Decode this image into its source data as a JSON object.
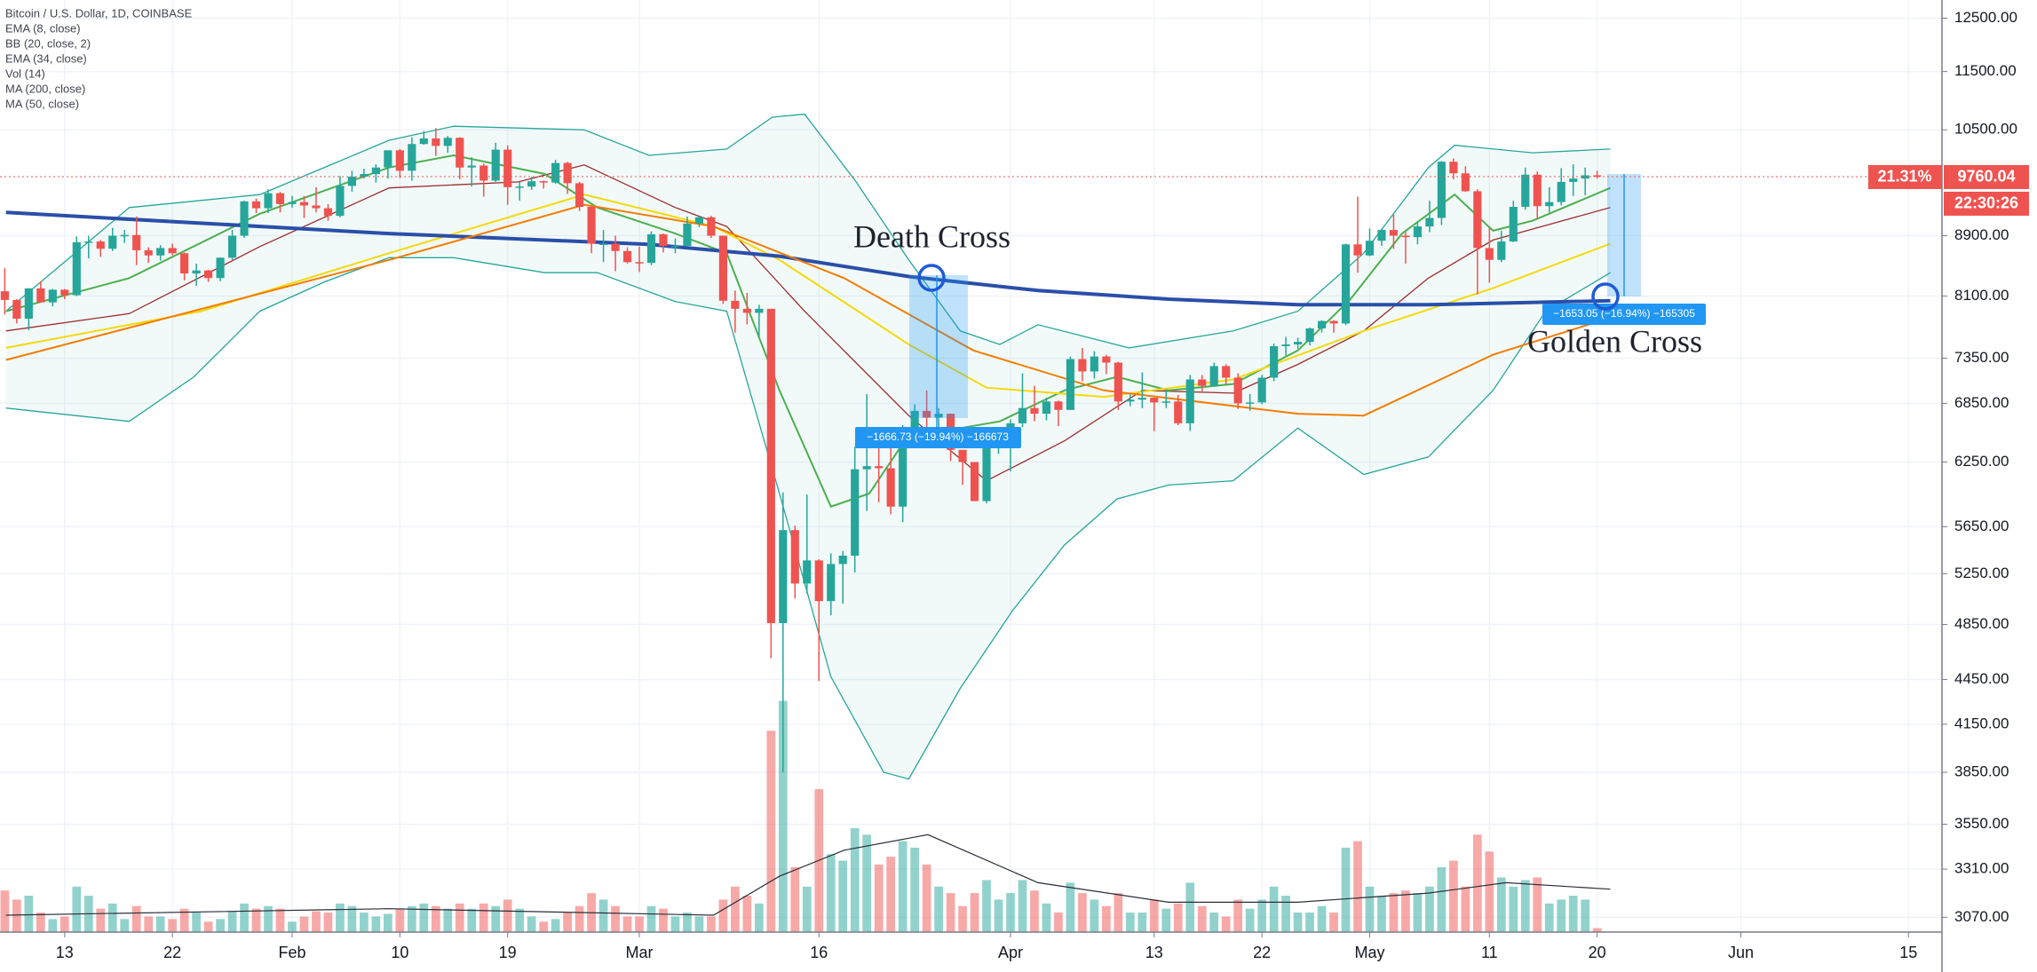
{
  "chart_data": {
    "type": "candlestick",
    "title": "Bitcoin / U.S. Dollar, 1D, COINBASE",
    "log_scale": true,
    "grid": true,
    "up_color": "#26a69a",
    "down_color": "#ef5350",
    "xlim": [
      7.6,
      169.8
    ],
    "xticks": [
      13,
      22,
      {
        "value": 32,
        "label": "Feb"
      },
      {
        "value": 41,
        "label": "10"
      },
      {
        "value": 50,
        "label": "19"
      },
      {
        "value": 61,
        "label": "Mar"
      },
      {
        "value": 76,
        "label": "16"
      },
      {
        "value": 92,
        "label": "Apr"
      },
      {
        "value": 104,
        "label": "13"
      },
      {
        "value": 113,
        "label": "22"
      },
      {
        "value": 122,
        "label": "May"
      },
      {
        "value": 132,
        "label": "11"
      },
      {
        "value": 141,
        "label": "20"
      },
      {
        "value": 153,
        "label": "Jun"
      },
      {
        "value": 167,
        "label": "15"
      }
    ],
    "ylim": [
      3000,
      12860
    ],
    "yticks": [
      {
        "value": 12500,
        "label": "12500.00"
      },
      {
        "value": 11500,
        "label": "11500.00"
      },
      {
        "value": 10500,
        "label": "10500.00"
      },
      {
        "value": 8900,
        "label": "8900.00"
      },
      {
        "value": 8100,
        "label": "8100.00"
      },
      {
        "value": 7350,
        "label": "7350.00"
      },
      {
        "value": 6850,
        "label": "6850.00"
      },
      {
        "value": 6250,
        "label": "6250.00"
      },
      {
        "value": 5650,
        "label": "5650.00"
      },
      {
        "value": 5250,
        "label": "5250.00"
      },
      {
        "value": 4850,
        "label": "4850.00"
      },
      {
        "value": 4450,
        "label": "4450.00"
      },
      {
        "value": 4150,
        "label": "4150.00"
      },
      {
        "value": 3850,
        "label": "3850.00"
      },
      {
        "value": 3550,
        "label": "3550.00"
      },
      {
        "value": 3310,
        "label": "3310.00"
      },
      {
        "value": 3070,
        "label": "3070.00"
      }
    ],
    "x": [
      8,
      9,
      10,
      11,
      12,
      13,
      14,
      15,
      16,
      17,
      18,
      19,
      20,
      21,
      22,
      23,
      24,
      25,
      26,
      27,
      28,
      29,
      30,
      31,
      32,
      33,
      34,
      35,
      36,
      37,
      38,
      39,
      40,
      41,
      42,
      43,
      44,
      45,
      46,
      47,
      48,
      49,
      50,
      51,
      52,
      53,
      54,
      55,
      56,
      57,
      58,
      59,
      60,
      61,
      62,
      63,
      64,
      65,
      66,
      67,
      68,
      69,
      70,
      71,
      72,
      73,
      74,
      75,
      76,
      77,
      78,
      79,
      80,
      81,
      82,
      83,
      84,
      85,
      86,
      87,
      88,
      89,
      90,
      91,
      92,
      93,
      94,
      95,
      96,
      97,
      98,
      99,
      100,
      101,
      102,
      103,
      104,
      105,
      106,
      107,
      108,
      109,
      110,
      111,
      112,
      113,
      114,
      115,
      116,
      117,
      118,
      119,
      120,
      121,
      122,
      123,
      124,
      125,
      126,
      127,
      128,
      129,
      130,
      131,
      132,
      133,
      134,
      135,
      136,
      137,
      138,
      139,
      140,
      141
    ],
    "open": [
      8160,
      8050,
      7818,
      8197,
      8020,
      8180,
      8110,
      8810,
      8820,
      8720,
      8900,
      8910,
      8700,
      8630,
      8730,
      8660,
      8390,
      8430,
      8330,
      8600,
      8900,
      9390,
      9290,
      9510,
      9350,
      9380,
      9330,
      9290,
      9180,
      9620,
      9760,
      9800,
      9900,
      10170,
      9850,
      10270,
      10360,
      10240,
      10370,
      9900,
      9930,
      9700,
      10180,
      9600,
      9610,
      9690,
      9670,
      9970,
      9660,
      9310,
      8790,
      8790,
      8690,
      8540,
      8530,
      8920,
      8760,
      8760,
      9070,
      9160,
      8900,
      8040,
      7940,
      7890,
      7940,
      4860,
      5620,
      5170,
      5360,
      5030,
      5330,
      5400,
      6180,
      6210,
      6190,
      5830,
      6490,
      6770,
      6700,
      6740,
      6370,
      6250,
      5880,
      6410,
      6430,
      6640,
      6800,
      6740,
      6870,
      6780,
      7340,
      7200,
      7370,
      7300,
      6870,
      6890,
      6910,
      6860,
      6870,
      6640,
      7110,
      7040,
      7260,
      7130,
      6850,
      6860,
      7130,
      7490,
      7510,
      7540,
      7700,
      7790,
      7760,
      8780,
      8630,
      8830,
      8980,
      8900,
      8880,
      9030,
      9150,
      9990,
      9810,
      9540,
      8730,
      8570,
      8820,
      9310,
      9790,
      9320,
      9380,
      9680,
      9730,
      9780
    ],
    "high": [
      8460,
      8060,
      8200,
      8290,
      8190,
      8190,
      8890,
      8900,
      8840,
      9010,
      8980,
      9170,
      8740,
      8770,
      8790,
      8670,
      8520,
      8440,
      8600,
      8980,
      9400,
      9430,
      9570,
      9530,
      9470,
      9470,
      9600,
      9350,
      9770,
      9850,
      9880,
      9950,
      10170,
      10190,
      10380,
      10480,
      10530,
      10400,
      10380,
      10060,
      9960,
      10290,
      10250,
      9680,
      9760,
      9700,
      10020,
      9990,
      9680,
      9330,
      8980,
      8900,
      8740,
      8750,
      8960,
      8930,
      8860,
      9170,
      9170,
      9180,
      8900,
      8170,
      8140,
      7990,
      7940,
      5960,
      5660,
      5940,
      5370,
      5420,
      5440,
      6400,
      6950,
      6460,
      6400,
      6620,
      6840,
      6990,
      6800,
      6740,
      6370,
      6250,
      6600,
      6530,
      6680,
      7180,
      7040,
      6910,
      6880,
      7370,
      7470,
      7430,
      7390,
      7310,
      6950,
      7190,
      6910,
      6990,
      6940,
      7160,
      7160,
      7300,
      7280,
      7180,
      6950,
      7160,
      7520,
      7600,
      7590,
      7710,
      7800,
      7800,
      8790,
      9460,
      9000,
      9000,
      9200,
      8950,
      9100,
      9400,
      10000,
      10040,
      9920,
      9570,
      9020,
      8970,
      9400,
      9900,
      9840,
      9600,
      9890,
      9950,
      9900,
      9850
    ],
    "low": [
      7870,
      7760,
      7680,
      8020,
      7970,
      8060,
      8100,
      8590,
      8610,
      8690,
      8800,
      8500,
      8530,
      8560,
      8630,
      8300,
      8230,
      8280,
      8290,
      8570,
      8870,
      9220,
      9220,
      9230,
      9300,
      9150,
      9230,
      9110,
      9160,
      9530,
      9730,
      9670,
      9730,
      9740,
      9700,
      10260,
      10080,
      10130,
      9720,
      9610,
      9460,
      9680,
      9340,
      9400,
      9560,
      9580,
      9650,
      9500,
      9250,
      8660,
      8540,
      8420,
      8520,
      8410,
      8500,
      8670,
      8660,
      8750,
      9020,
      8870,
      8000,
      7650,
      7750,
      7600,
      4600,
      3850,
      5050,
      5090,
      4440,
      4920,
      5010,
      5260,
      5790,
      5870,
      5760,
      5690,
      6400,
      6530,
      6560,
      6260,
      6030,
      5880,
      5860,
      6330,
      6160,
      6600,
      6660,
      6670,
      6610,
      6780,
      7090,
      7120,
      7170,
      6780,
      6820,
      6800,
      6560,
      6800,
      6620,
      6560,
      6980,
      7030,
      7060,
      6790,
      6770,
      6840,
      7090,
      7380,
      7460,
      7500,
      7650,
      7650,
      7740,
      8400,
      8620,
      8760,
      8720,
      8520,
      8780,
      8950,
      9050,
      9720,
      9530,
      8120,
      8270,
      8540,
      8810,
      9270,
      9130,
      9230,
      9330,
      9470,
      9480,
      9730
    ],
    "close": [
      8050,
      7818,
      8197,
      8020,
      8180,
      8110,
      8810,
      8820,
      8720,
      8900,
      8910,
      8700,
      8630,
      8730,
      8660,
      8390,
      8430,
      8330,
      8600,
      8900,
      9390,
      9290,
      9510,
      9350,
      9380,
      9330,
      9290,
      9180,
      9620,
      9760,
      9800,
      9900,
      10170,
      9850,
      10270,
      10360,
      10240,
      10370,
      9900,
      9930,
      9700,
      10180,
      9600,
      9610,
      9690,
      9670,
      9970,
      9660,
      9310,
      8790,
      8790,
      8690,
      8540,
      8530,
      8920,
      8760,
      8760,
      9070,
      9160,
      8900,
      8040,
      7940,
      7890,
      7940,
      4860,
      5620,
      5170,
      5360,
      5030,
      5330,
      5400,
      6180,
      6210,
      6190,
      5830,
      6490,
      6770,
      6700,
      6740,
      6370,
      6250,
      5880,
      6410,
      6430,
      6640,
      6800,
      6740,
      6870,
      6780,
      7340,
      7200,
      7370,
      7300,
      6870,
      6890,
      6910,
      6860,
      6870,
      6640,
      7110,
      7040,
      7260,
      7130,
      6850,
      6860,
      7130,
      7490,
      7510,
      7540,
      7700,
      7790,
      7760,
      8780,
      8630,
      8830,
      8980,
      8900,
      8880,
      9030,
      9150,
      9990,
      9810,
      9540,
      8730,
      8570,
      8820,
      9310,
      9790,
      9320,
      9380,
      9680,
      9730,
      9780,
      9760.04
    ],
    "indicators": [
      {
        "name": "EMA (8, close)",
        "type": "line",
        "color": "#4caf50",
        "x": [
          8.1,
          18.4,
          29.3,
          40.1,
          45.5,
          53.1,
          57.5,
          64.0,
          68.3,
          72.7,
          77.0,
          80.2,
          83.5,
          87.8,
          91.1,
          96.5,
          100.9,
          105.2,
          110.6,
          116.0,
          120.4,
          124.7,
          129.1,
          132.3,
          135.6,
          142.1
        ],
        "values": [
          7910,
          8330,
          9210,
          9900,
          10090,
          9800,
          9300,
          8930,
          8660,
          6990,
          5830,
          5950,
          6520,
          6590,
          6660,
          6990,
          7140,
          6990,
          7060,
          7440,
          8060,
          8930,
          9490,
          8970,
          9110,
          9590
        ]
      },
      {
        "name": "BB (20, close, 2)",
        "type": "band",
        "color": "#26a69a",
        "basis_color": "#9b2c2c",
        "upper": {
          "x": [
            8.1,
            18.4,
            29.3,
            40.1,
            45.5,
            56.4,
            61.8,
            68.3,
            72.1,
            74.8,
            79.1,
            83.5,
            87.8,
            91.1,
            94.3,
            101.9,
            110.6,
            116.0,
            121.5,
            126.9,
            129.1,
            135.6,
            142.1
          ],
          "values": [
            7910,
            9300,
            9490,
            10330,
            10560,
            10500,
            10090,
            10190,
            10710,
            10760,
            9680,
            8570,
            7670,
            7510,
            7745,
            7470,
            7670,
            7910,
            8660,
            9900,
            10250,
            10130,
            10190
          ]
        },
        "lower": {
          "x": [
            8.1,
            18.4,
            23.8,
            29.3,
            34.7,
            40.1,
            45.5,
            53.1,
            57.5,
            64.0,
            68.3,
            72.7,
            77.0,
            81.4,
            83.5,
            87.8,
            92.2,
            96.5,
            100.9,
            105.2,
            110.6,
            116.0,
            121.5,
            126.9,
            132.3,
            136.7,
            142.1
          ],
          "values": [
            6800,
            6660,
            7140,
            7910,
            8280,
            8600,
            8600,
            8400,
            8400,
            8030,
            7910,
            5950,
            4470,
            3850,
            3810,
            4390,
            4960,
            5490,
            5900,
            6030,
            6070,
            6590,
            6130,
            6300,
            6990,
            7910,
            8400
          ]
        },
        "basis": {
          "x": [
            8.1,
            18.4,
            29.3,
            40.1,
            50.9,
            56.4,
            64.0,
            68.3,
            74.8,
            83.5,
            90.0,
            96.5,
            103.0,
            110.6,
            116.0,
            121.5,
            126.9,
            132.3,
            142.1
          ],
          "values": [
            7670,
            7880,
            8750,
            9590,
            9680,
            9940,
            9300,
            9030,
            7910,
            6720,
            6070,
            6460,
            6990,
            6960,
            7280,
            7670,
            8330,
            8840,
            9300
          ]
        }
      },
      {
        "name": "EMA (34, close)",
        "type": "line",
        "color": "#f5d90a",
        "x": [
          8.1,
          24.4,
          40.1,
          56.4,
          67.2,
          72.7,
          83.5,
          90.0,
          99.8,
          110.6,
          121.5,
          132.3,
          142.1
        ],
        "values": [
          7470,
          7910,
          8660,
          9490,
          9030,
          8570,
          7510,
          7020,
          6920,
          7110,
          7670,
          8200,
          8790
        ]
      },
      {
        "name": "Vol (14)",
        "type": "volume",
        "ma_color": "#2a2e39",
        "values": [
          32,
          25,
          28,
          15,
          10,
          12,
          35,
          28,
          18,
          22,
          10,
          20,
          12,
          12,
          10,
          18,
          15,
          8,
          10,
          16,
          22,
          18,
          20,
          18,
          8,
          12,
          16,
          15,
          22,
          20,
          15,
          12,
          14,
          18,
          20,
          22,
          20,
          18,
          22,
          18,
          22,
          20,
          25,
          18,
          12,
          8,
          10,
          15,
          20,
          30,
          25,
          20,
          12,
          12,
          20,
          18,
          12,
          15,
          12,
          12,
          25,
          35,
          28,
          22,
          155,
          178,
          50,
          35,
          110,
          60,
          55,
          80,
          75,
          52,
          58,
          70,
          65,
          52,
          35,
          30,
          20,
          30,
          40,
          25,
          30,
          40,
          32,
          22,
          15,
          38,
          30,
          25,
          20,
          30,
          15,
          15,
          25,
          18,
          22,
          38,
          20,
          15,
          12,
          25,
          18,
          25,
          35,
          28,
          15,
          15,
          20,
          15,
          65,
          70,
          35,
          28,
          30,
          32,
          30,
          35,
          50,
          55,
          35,
          75,
          62,
          42,
          35,
          40,
          42,
          22,
          25,
          28,
          25,
          3
        ],
        "ma": {
          "x": [
            8.1,
            40.1,
            67.2,
            72.7,
            78.1,
            85.1,
            94.3,
            105.2,
            116.0,
            126.9,
            133.4,
            142.1
          ],
          "values": [
            13,
            18,
            13,
            43,
            63,
            75,
            38,
            23,
            23,
            30,
            38,
            33
          ]
        }
      },
      {
        "name": "MA (200, close)",
        "type": "line",
        "color": "#2a4fa8",
        "width": 4,
        "x": [
          8.1,
          40.1,
          61.8,
          72.7,
          83.5,
          94.3,
          105.2,
          116.0,
          126.9,
          142.1
        ],
        "values": [
          9230,
          8930,
          8780,
          8620,
          8350,
          8170,
          8060,
          7990,
          7990,
          8040
        ]
      },
      {
        "name": "MA (50, close)",
        "type": "line",
        "color": "#f57c00",
        "x": [
          8.1,
          40.1,
          56.4,
          67.2,
          78.1,
          88.9,
          99.8,
          116.0,
          121.5,
          132.3,
          142.1
        ],
        "values": [
          7330,
          8570,
          9340,
          9030,
          8330,
          7440,
          6990,
          6740,
          6720,
          7390,
          7830
        ]
      }
    ],
    "annotations": [
      "Death Cross",
      "Golden Cross"
    ],
    "measure_labels": [
      "−1666.73 (−19.94%) −166673",
      "−1653.05 (−16.94%) −165305"
    ],
    "last_price": 9760.04,
    "last_price_color": "#ef5350",
    "change_label": "21.31%",
    "countdown": "22:30:26"
  }
}
